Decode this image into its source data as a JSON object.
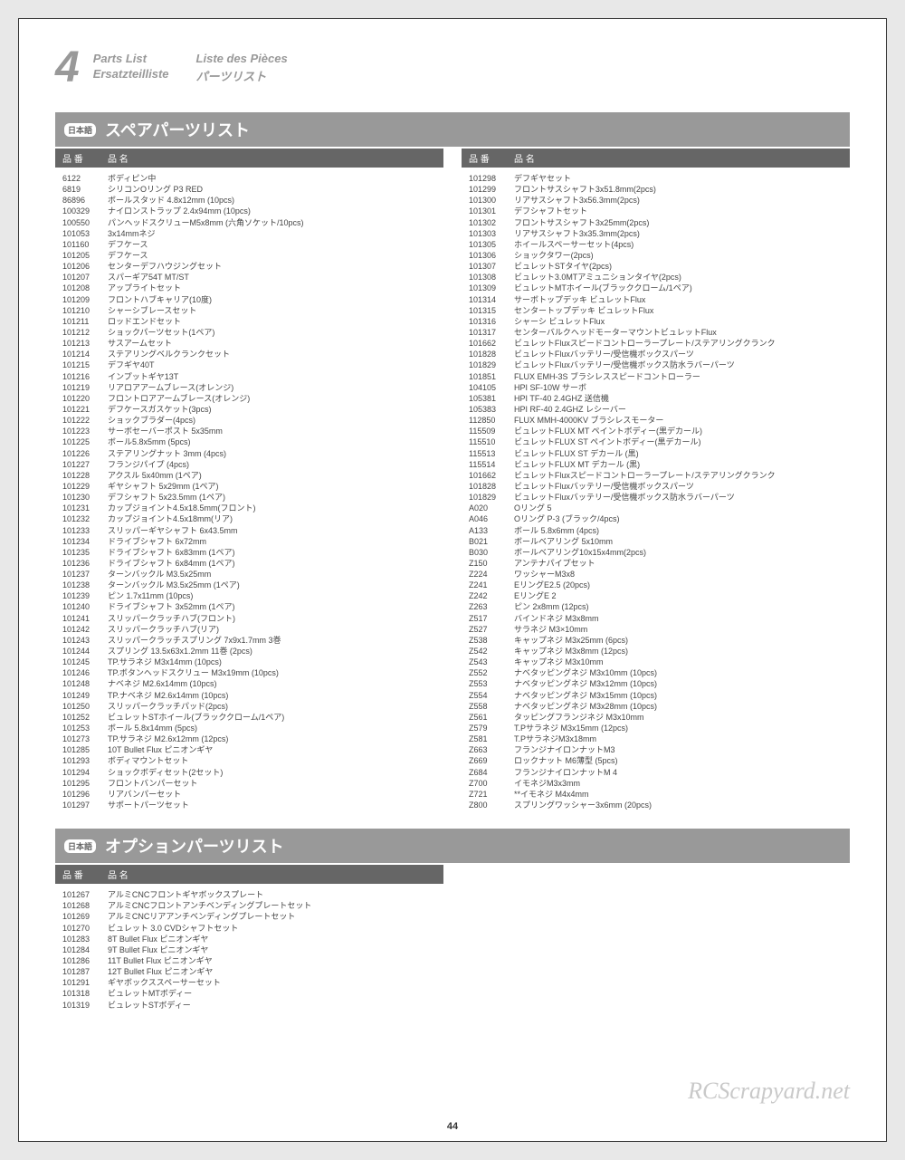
{
  "header": {
    "section_number": "4",
    "titles": [
      "Parts List",
      "Liste des Pièces",
      "Ersatzteilliste",
      "パーツリスト"
    ]
  },
  "spare": {
    "flag": "日本語",
    "title": "スペアパーツリスト",
    "col_num": "品 番",
    "col_name": "品 名",
    "left": [
      [
        "6122",
        "ボディピン中"
      ],
      [
        "6819",
        "シリコンOリング P3 RED"
      ],
      [
        "86896",
        "ボールスタッド 4.8x12mm (10pcs)"
      ],
      [
        "100329",
        "ナイロンストラップ 2.4x94mm (10pcs)"
      ],
      [
        "100550",
        "パンヘッドスクリューM5x8mm (六角ソケット/10pcs)"
      ],
      [
        "101053",
        "3x14mmネジ"
      ],
      [
        "101160",
        "デフケース"
      ],
      [
        "101205",
        "デフケース"
      ],
      [
        "101206",
        "センターデフハウジングセット"
      ],
      [
        "101207",
        "スパーギア54T MT/ST"
      ],
      [
        "101208",
        "アップライトセット"
      ],
      [
        "101209",
        "フロントハブキャリア(10度)"
      ],
      [
        "101210",
        "シャーシブレースセット"
      ],
      [
        "101211",
        "ロッドエンドセット"
      ],
      [
        "101212",
        "ショックパーツセット(1ペア)"
      ],
      [
        "101213",
        "サスアームセット"
      ],
      [
        "101214",
        "ステアリングベルクランクセット"
      ],
      [
        "101215",
        "デフギヤ40T"
      ],
      [
        "101216",
        "インプットギヤ13T"
      ],
      [
        "101219",
        "リアロアアームブレース(オレンジ)"
      ],
      [
        "101220",
        "フロントロアアームブレース(オレンジ)"
      ],
      [
        "101221",
        "デフケースガスケット(3pcs)"
      ],
      [
        "101222",
        "ショックブラダー(4pcs)"
      ],
      [
        "101223",
        "サーボセーバーポスト 5x35mm"
      ],
      [
        "101225",
        "ボール5.8x5mm (5pcs)"
      ],
      [
        "101226",
        "ステアリングナット 3mm (4pcs)"
      ],
      [
        "101227",
        "フランジパイプ (4pcs)"
      ],
      [
        "101228",
        "アクスル 5x40mm (1ペア)"
      ],
      [
        "101229",
        "ギヤシャフト 5x29mm (1ペア)"
      ],
      [
        "101230",
        "デフシャフト 5x23.5mm (1ペア)"
      ],
      [
        "101231",
        "カップジョイント4.5x18.5mm(フロント)"
      ],
      [
        "101232",
        "カップジョイント4.5x18mm(リア)"
      ],
      [
        "101233",
        "スリッパーギヤシャフト 6x43.5mm"
      ],
      [
        "101234",
        "ドライブシャフト 6x72mm"
      ],
      [
        "101235",
        "ドライブシャフト 6x83mm (1ペア)"
      ],
      [
        "101236",
        "ドライブシャフト 6x84mm (1ペア)"
      ],
      [
        "101237",
        "ターンバックル M3.5x25mm"
      ],
      [
        "101238",
        "ターンバックル M3.5x25mm (1ペア)"
      ],
      [
        "101239",
        "ピン 1.7x11mm (10pcs)"
      ],
      [
        "101240",
        "ドライブシャフト 3x52mm (1ペア)"
      ],
      [
        "101241",
        "スリッパークラッチハブ(フロント)"
      ],
      [
        "101242",
        "スリッパークラッチハブ(リア)"
      ],
      [
        "101243",
        "スリッパークラッチスプリング 7x9x1.7mm 3巻"
      ],
      [
        "101244",
        "スプリング 13.5x63x1.2mm 11巻 (2pcs)"
      ],
      [
        "101245",
        "TP.サラネジ M3x14mm (10pcs)"
      ],
      [
        "101246",
        "TP.ボタンヘッドスクリュー M3x19mm (10pcs)"
      ],
      [
        "101248",
        "ナベネジ M2.6x14mm (10pcs)"
      ],
      [
        "101249",
        "TP.ナベネジ M2.6x14mm (10pcs)"
      ],
      [
        "101250",
        "スリッパークラッチパッド(2pcs)"
      ],
      [
        "101252",
        "ビュレットSTホイール(ブラッククローム/1ペア)"
      ],
      [
        "101253",
        "ボール 5.8x14mm (5pcs)"
      ],
      [
        "101273",
        "TP.サラネジ M2.6x12mm (12pcs)"
      ],
      [
        "101285",
        "10T Bullet Flux ピニオンギヤ"
      ],
      [
        "101293",
        "ボディマウントセット"
      ],
      [
        "101294",
        "ショックボディセット(2セット)"
      ],
      [
        "101295",
        "フロントバンパーセット"
      ],
      [
        "101296",
        "リアバンパーセット"
      ],
      [
        "101297",
        "サポートパーツセット"
      ]
    ],
    "right": [
      [
        "101298",
        "デフギヤセット"
      ],
      [
        "101299",
        "フロントサスシャフト3x51.8mm(2pcs)"
      ],
      [
        "101300",
        "リアサスシャフト3x56.3mm(2pcs)"
      ],
      [
        "101301",
        "デフシャフトセット"
      ],
      [
        "101302",
        "フロントサスシャフト3x25mm(2pcs)"
      ],
      [
        "101303",
        "リアサスシャフト3x35.3mm(2pcs)"
      ],
      [
        "101305",
        "ホイールスペーサーセット(4pcs)"
      ],
      [
        "101306",
        "ショックタワー(2pcs)"
      ],
      [
        "101307",
        "ビュレットSTタイヤ(2pcs)"
      ],
      [
        "101308",
        "ビュレット3.0MTアミュニションタイヤ(2pcs)"
      ],
      [
        "101309",
        "ビュレットMTホイール(ブラッククローム/1ペア)"
      ],
      [
        "101314",
        "サーボトップデッキ ビュレットFlux"
      ],
      [
        "101315",
        "センタートップデッキ ビュレットFlux"
      ],
      [
        "101316",
        "シャーシ ビュレットFlux"
      ],
      [
        "101317",
        "センターバルクヘッドモーターマウントビュレットFlux"
      ],
      [
        "101662",
        "ビュレットFluxスピードコントローラープレート/ステアリングクランク"
      ],
      [
        "101828",
        "ビュレットFluxバッテリー/受信機ボックスパーツ"
      ],
      [
        "101829",
        "ビュレットFluxバッテリー/受信機ボックス防水ラバーパーツ"
      ],
      [
        "101851",
        "FLUX EMH-3S ブラシレススピードコントローラー"
      ],
      [
        "104105",
        "HPI SF-10W サーボ"
      ],
      [
        "105381",
        "HPI TF-40 2.4GHZ 送信機"
      ],
      [
        "105383",
        "HPI RF-40 2.4GHZ レシーバー"
      ],
      [
        "112850",
        "FLUX MMH-4000KV ブラシレスモーター"
      ],
      [
        "115509",
        "ビュレットFLUX MT ペイントボディー(黒デカール)"
      ],
      [
        "115510",
        "ビュレットFLUX ST ペイントボディー(黒デカール)"
      ],
      [
        "115513",
        "ビュレットFLUX ST デカール (黒)"
      ],
      [
        "115514",
        "ビュレットFLUX MT デカール (黒)"
      ],
      [
        "101662",
        "ビュレットFluxスピードコントローラープレート/ステアリングクランク"
      ],
      [
        "101828",
        "ビュレットFluxバッテリー/受信機ボックスパーツ"
      ],
      [
        "101829",
        "ビュレットFluxバッテリー/受信機ボックス防水ラバーパーツ"
      ],
      [
        "A020",
        "Oリング 5"
      ],
      [
        "A046",
        "Oリング P-3 (ブラック/4pcs)"
      ],
      [
        "A133",
        "ボール 5.8x6mm (4pcs)"
      ],
      [
        "B021",
        "ボールベアリング 5x10mm"
      ],
      [
        "B030",
        "ボールベアリング10x15x4mm(2pcs)"
      ],
      [
        "Z150",
        "アンテナパイプセット"
      ],
      [
        "Z224",
        "ワッシャーM3x8"
      ],
      [
        "Z241",
        "EリングE2.5 (20pcs)"
      ],
      [
        "Z242",
        "EリングE 2"
      ],
      [
        "Z263",
        "ピン 2x8mm (12pcs)"
      ],
      [
        "Z517",
        "バインドネジ M3x8mm"
      ],
      [
        "Z527",
        "サラネジ M3×10mm"
      ],
      [
        "Z538",
        "キャップネジ M3x25mm (6pcs)"
      ],
      [
        "Z542",
        "キャップネジ M3x8mm (12pcs)"
      ],
      [
        "Z543",
        "キャップネジ M3x10mm"
      ],
      [
        "Z552",
        "ナベタッピングネジ M3x10mm (10pcs)"
      ],
      [
        "Z553",
        "ナベタッピングネジ M3x12mm (10pcs)"
      ],
      [
        "Z554",
        "ナベタッピングネジ M3x15mm (10pcs)"
      ],
      [
        "Z558",
        "ナベタッピングネジ M3x28mm (10pcs)"
      ],
      [
        "Z561",
        "タッピングフランジネジ M3x10mm"
      ],
      [
        "Z579",
        "T.Pサラネジ M3x15mm (12pcs)"
      ],
      [
        "Z581",
        "T.PサラネジM3x18mm"
      ],
      [
        "Z663",
        "フランジナイロンナットM3"
      ],
      [
        "Z669",
        "ロックナット M6薄型 (5pcs)"
      ],
      [
        "Z684",
        "フランジナイロンナットM 4"
      ],
      [
        "Z700",
        "イモネジM3x3mm"
      ],
      [
        "Z721",
        "**イモネジ M4x4mm"
      ],
      [
        "Z800",
        "スプリングワッシャー3x6mm (20pcs)"
      ]
    ]
  },
  "option": {
    "flag": "日本語",
    "title": "オプションパーツリスト",
    "col_num": "品 番",
    "col_name": "品 名",
    "rows": [
      [
        "101267",
        "アルミCNCフロントギヤボックスプレート"
      ],
      [
        "101268",
        "アルミCNCフロントアンチベンディングプレートセット"
      ],
      [
        "101269",
        "アルミCNCリアアンチベンディングプレートセット"
      ],
      [
        "101270",
        "ビュレット 3.0 CVDシャフトセット"
      ],
      [
        "101283",
        "8T Bullet Flux ピニオンギヤ"
      ],
      [
        "101284",
        "9T Bullet Flux ピニオンギヤ"
      ],
      [
        "101286",
        "11T Bullet Flux ピニオンギヤ"
      ],
      [
        "101287",
        "12T Bullet Flux ピニオンギヤ"
      ],
      [
        "101291",
        "ギヤボックススペーサーセット"
      ],
      [
        "101318",
        "ビュレットMTボディー"
      ],
      [
        "101319",
        "ビュレットSTボディー"
      ]
    ]
  },
  "page_number": "44",
  "watermark": "RCScrapyard.net"
}
